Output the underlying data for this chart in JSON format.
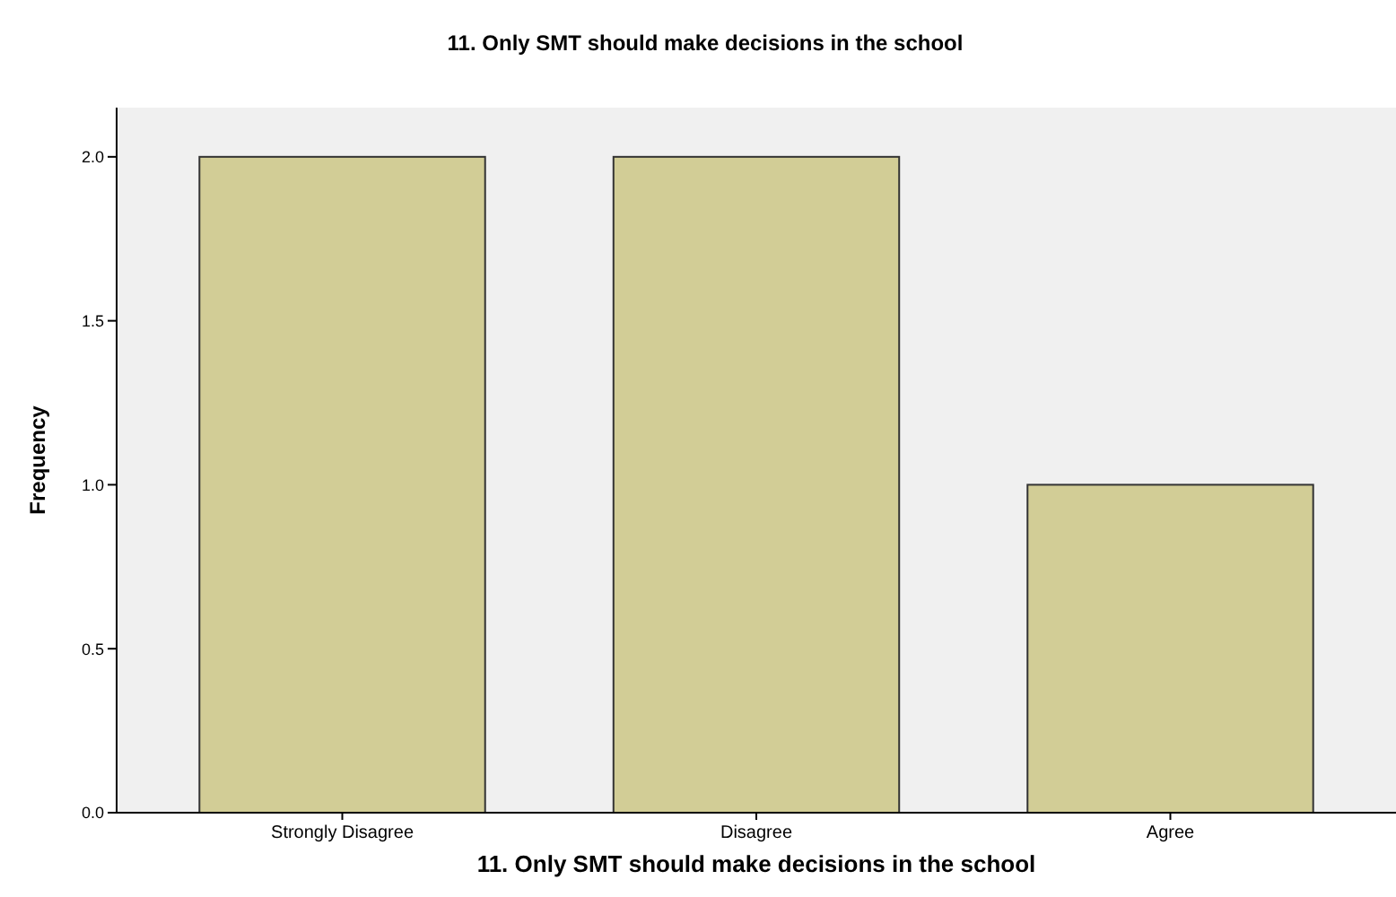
{
  "chart_data": {
    "type": "bar",
    "title": "11. Only SMT should make decisions in the school",
    "xlabel": "11. Only SMT should make decisions in the school",
    "ylabel": "Frequency",
    "categories": [
      "Strongly Disagree",
      "Disagree",
      "Agree"
    ],
    "values": [
      2,
      2,
      1
    ],
    "color": "#d2cd96",
    "ylim": [
      0,
      2.15
    ],
    "yticks": [
      {
        "value": 0,
        "label": "0.0"
      },
      {
        "value": 0.5,
        "label": "0.5"
      },
      {
        "value": 1,
        "label": "1.0"
      },
      {
        "value": 1.5,
        "label": "1.5"
      },
      {
        "value": 2,
        "label": "2.0"
      }
    ],
    "grid": false
  }
}
